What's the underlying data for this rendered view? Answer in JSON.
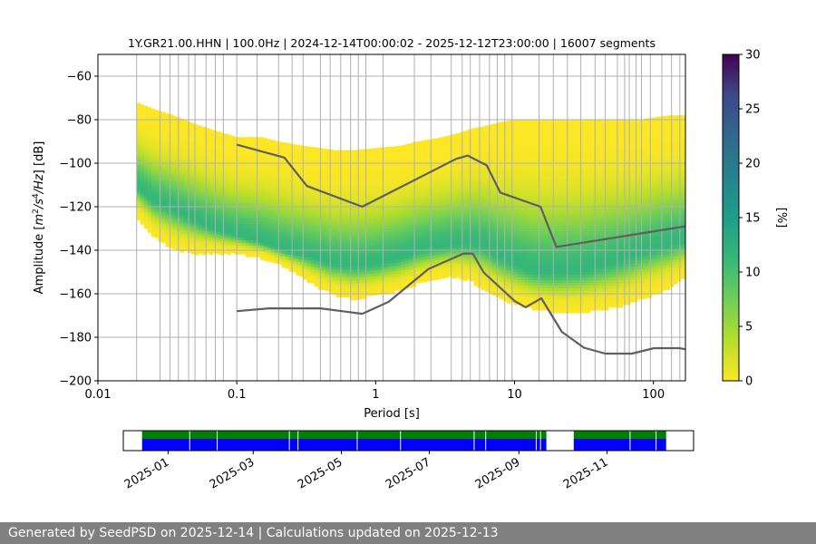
{
  "chart_data": [
    {
      "type": "heatmap",
      "title": "1Y.GR21.00.HHN | 100.0Hz | 2024-12-14T00:00:02 - 2025-12-12T23:00:00 | 16007 segments",
      "xlabel": "Period [s]",
      "ylabel_parts": [
        "Amplitude [",
        "m",
        "2",
        "/",
        "s",
        "4",
        "/",
        "Hz",
        "] [dB]"
      ],
      "x_scale": "log",
      "xlim": [
        0.01,
        170
      ],
      "ylim": [
        -200,
        -50
      ],
      "x_ticks": [
        {
          "value": 0.01,
          "label": "0.01"
        },
        {
          "value": 0.1,
          "label": "0.1"
        },
        {
          "value": 1,
          "label": "1"
        },
        {
          "value": 10,
          "label": "10"
        },
        {
          "value": 100,
          "label": "100"
        }
      ],
      "y_ticks": [
        {
          "value": -60,
          "label": "−60"
        },
        {
          "value": -80,
          "label": "−80"
        },
        {
          "value": -100,
          "label": "−100"
        },
        {
          "value": -120,
          "label": "−120"
        },
        {
          "value": -140,
          "label": "−140"
        },
        {
          "value": -160,
          "label": "−160"
        },
        {
          "value": -180,
          "label": "−180"
        },
        {
          "value": -200,
          "label": "−200"
        }
      ],
      "grid": true,
      "colormap": "viridis",
      "colorbar": {
        "label": "[%]",
        "range": [
          0,
          30
        ],
        "ticks": [
          {
            "value": 0,
            "label": "0"
          },
          {
            "value": 5,
            "label": "5"
          },
          {
            "value": 10,
            "label": "10"
          },
          {
            "value": 15,
            "label": "15"
          },
          {
            "value": 20,
            "label": "20"
          },
          {
            "value": 25,
            "label": "25"
          },
          {
            "value": 30,
            "label": "30"
          }
        ]
      },
      "psd_distribution": {
        "periods": [
          0.019,
          0.025,
          0.035,
          0.05,
          0.07,
          0.1,
          0.15,
          0.2,
          0.3,
          0.4,
          0.5,
          0.7,
          1.0,
          1.5,
          2.0,
          3.0,
          4.0,
          5.0,
          6.0,
          8.0,
          10,
          13,
          16,
          20,
          30,
          40,
          60,
          80,
          100,
          130,
          170
        ],
        "top": [
          -72,
          -75,
          -78,
          -82,
          -85,
          -88,
          -88,
          -90,
          -92,
          -93,
          -94,
          -94,
          -93,
          -92,
          -90,
          -88,
          -86,
          -84,
          -83,
          -81,
          -80,
          -80,
          -80,
          -80,
          -80,
          -80,
          -80,
          -80,
          -79,
          -78,
          -78
        ],
        "bottom": [
          -124,
          -133,
          -139,
          -141,
          -141,
          -141,
          -143,
          -146,
          -152,
          -157,
          -160,
          -162,
          -160,
          -158,
          -155,
          -152,
          -152,
          -154,
          -158,
          -162,
          -164,
          -166,
          -167,
          -168,
          -168,
          -167,
          -165,
          -162,
          -160,
          -157,
          -152
        ],
        "mode": [
          -110,
          -117,
          -121,
          -126,
          -130,
          -133,
          -136,
          -139,
          -142,
          -144,
          -146,
          -147,
          -146,
          -143,
          -140,
          -138,
          -137,
          -137,
          -138,
          -143,
          -146,
          -149,
          -150,
          -150,
          -149,
          -147,
          -144,
          -141,
          -139,
          -137,
          -135
        ],
        "peak_percent": 9
      },
      "reference_curves": [
        {
          "periods": [
            0.1,
            0.22,
            0.32,
            0.8,
            3.8,
            4.6,
            6.3,
            7.9,
            15.4,
            20,
            170
          ],
          "values": [
            -91.5,
            -97.4,
            -110.5,
            -120,
            -98,
            -96.5,
            -101,
            -113.5,
            -120,
            -138.5,
            -129
          ]
        },
        {
          "periods": [
            0.1,
            0.17,
            0.4,
            0.8,
            1.24,
            2.4,
            4.3,
            5.0,
            6.0,
            10,
            12,
            15.6,
            21.9,
            31.6,
            45,
            70,
            101,
            154,
            170
          ],
          "values": [
            -168,
            -166.7,
            -166.7,
            -169.2,
            -163.7,
            -148.6,
            -141.5,
            -141.5,
            -150.2,
            -163.3,
            -166.2,
            -162.1,
            -177.5,
            -184.8,
            -187.5,
            -187.5,
            -185,
            -185,
            -185.5
          ]
        }
      ],
      "vertical_lines_period": [
        0.019,
        0.028,
        0.033,
        0.038,
        0.045,
        0.05,
        0.06,
        0.07,
        0.08,
        0.1,
        0.14,
        0.2,
        0.25,
        0.3,
        0.4,
        0.47,
        0.56,
        0.66,
        0.75,
        0.85,
        1.13,
        1.9,
        2.5,
        3.5,
        4.2,
        4.8,
        5.6,
        6.6,
        7.5,
        8.5,
        9.6,
        15,
        19,
        24,
        30,
        38,
        45,
        55,
        62,
        67,
        75,
        82,
        95,
        115,
        135,
        155
      ]
    },
    {
      "type": "timeline",
      "start": "2024-12-01",
      "end": "2025-12-31",
      "x_ticks": [
        {
          "value": "2025-01-01",
          "label": "2025-01"
        },
        {
          "value": "2025-03-01",
          "label": "2025-03"
        },
        {
          "value": "2025-05-01",
          "label": "2025-05"
        },
        {
          "value": "2025-07-01",
          "label": "2025-07"
        },
        {
          "value": "2025-09-01",
          "label": "2025-09"
        },
        {
          "value": "2025-11-01",
          "label": "2025-11"
        }
      ],
      "coverage_color": "#008000",
      "data_color": "#0000ff",
      "coverage_periods": [
        [
          "2024-12-14",
          "2025-09-20"
        ],
        [
          "2025-10-09",
          "2025-12-12"
        ]
      ],
      "data_periods": [
        [
          "2024-12-14",
          "2025-09-20"
        ],
        [
          "2025-10-09",
          "2025-12-12"
        ]
      ],
      "gaps": [
        "2025-01-16",
        "2025-02-04",
        "2025-03-26",
        "2025-04-01",
        "2025-05-12",
        "2025-06-11",
        "2025-08-01",
        "2025-08-09",
        "2025-09-13",
        "2025-09-16",
        "2025-11-17",
        "2025-12-05"
      ]
    }
  ],
  "footer": {
    "text": "Generated by SeedPSD on 2025-12-14 | Calculations updated on 2025-12-13",
    "background": "#808080"
  }
}
